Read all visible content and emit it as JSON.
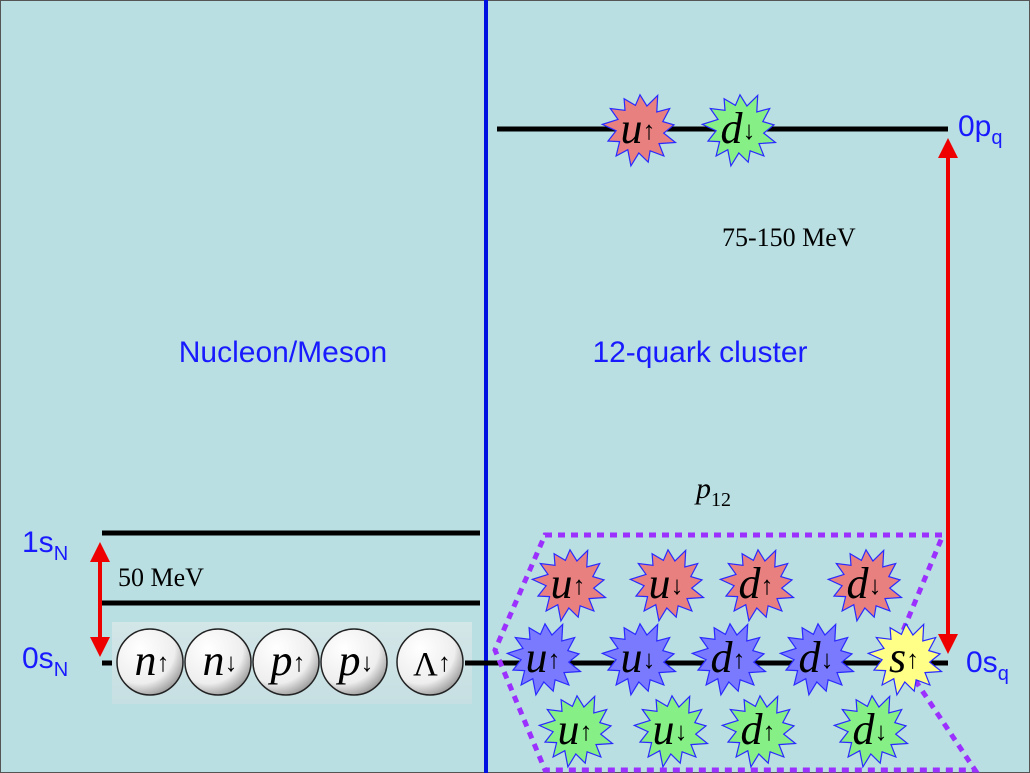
{
  "colors": {
    "background": "#b9dfe2",
    "divider": "#0010e0",
    "arrow": "#ee0000",
    "label_blue": "#1a1aff",
    "cluster_outline": "#9b30ff",
    "quark_red": "#e88080",
    "quark_green": "#86f086",
    "quark_blue": "#7a7aff",
    "quark_yellow": "#ffff88"
  },
  "left_panel": {
    "title": "Nucleon/Meson",
    "level_1s": {
      "main": "1s",
      "sub": "N"
    },
    "level_0s": {
      "main": "0s",
      "sub": "N"
    },
    "gap_label": "50 MeV",
    "particles": [
      {
        "symbol": "n",
        "spin": "↑",
        "italic": true
      },
      {
        "symbol": "n",
        "spin": "↓",
        "italic": true
      },
      {
        "symbol": "p",
        "spin": "↑",
        "italic": true
      },
      {
        "symbol": "p",
        "spin": "↓",
        "italic": true
      },
      {
        "symbol": "Λ",
        "spin": "↑",
        "italic": false
      }
    ]
  },
  "right_panel": {
    "title": "12-quark cluster",
    "level_0p": {
      "main": "0p",
      "sub": "q"
    },
    "level_0s": {
      "main": "0s",
      "sub": "q"
    },
    "gap_label": "75-150 MeV",
    "cluster_label": {
      "main": "p",
      "sub": "12"
    },
    "top_quarks": [
      {
        "flavor": "u",
        "spin": "↑",
        "color": "red"
      },
      {
        "flavor": "d",
        "spin": "↓",
        "color": "green"
      }
    ],
    "cluster_rows": [
      [
        {
          "flavor": "u",
          "spin": "↑",
          "color": "red"
        },
        {
          "flavor": "u",
          "spin": "↓",
          "color": "red"
        },
        {
          "flavor": "d",
          "spin": "↑",
          "color": "red"
        },
        {
          "flavor": "d",
          "spin": "↓",
          "color": "red"
        }
      ],
      [
        {
          "flavor": "u",
          "spin": "↑",
          "color": "blue"
        },
        {
          "flavor": "u",
          "spin": "↓",
          "color": "blue"
        },
        {
          "flavor": "d",
          "spin": "↑",
          "color": "blue"
        },
        {
          "flavor": "d",
          "spin": "↓",
          "color": "blue"
        },
        {
          "flavor": "s",
          "spin": "↑",
          "color": "yellow"
        }
      ],
      [
        {
          "flavor": "u",
          "spin": "↑",
          "color": "green"
        },
        {
          "flavor": "u",
          "spin": "↓",
          "color": "green"
        },
        {
          "flavor": "d",
          "spin": "↑",
          "color": "green"
        },
        {
          "flavor": "d",
          "spin": "↓",
          "color": "green"
        }
      ]
    ]
  }
}
